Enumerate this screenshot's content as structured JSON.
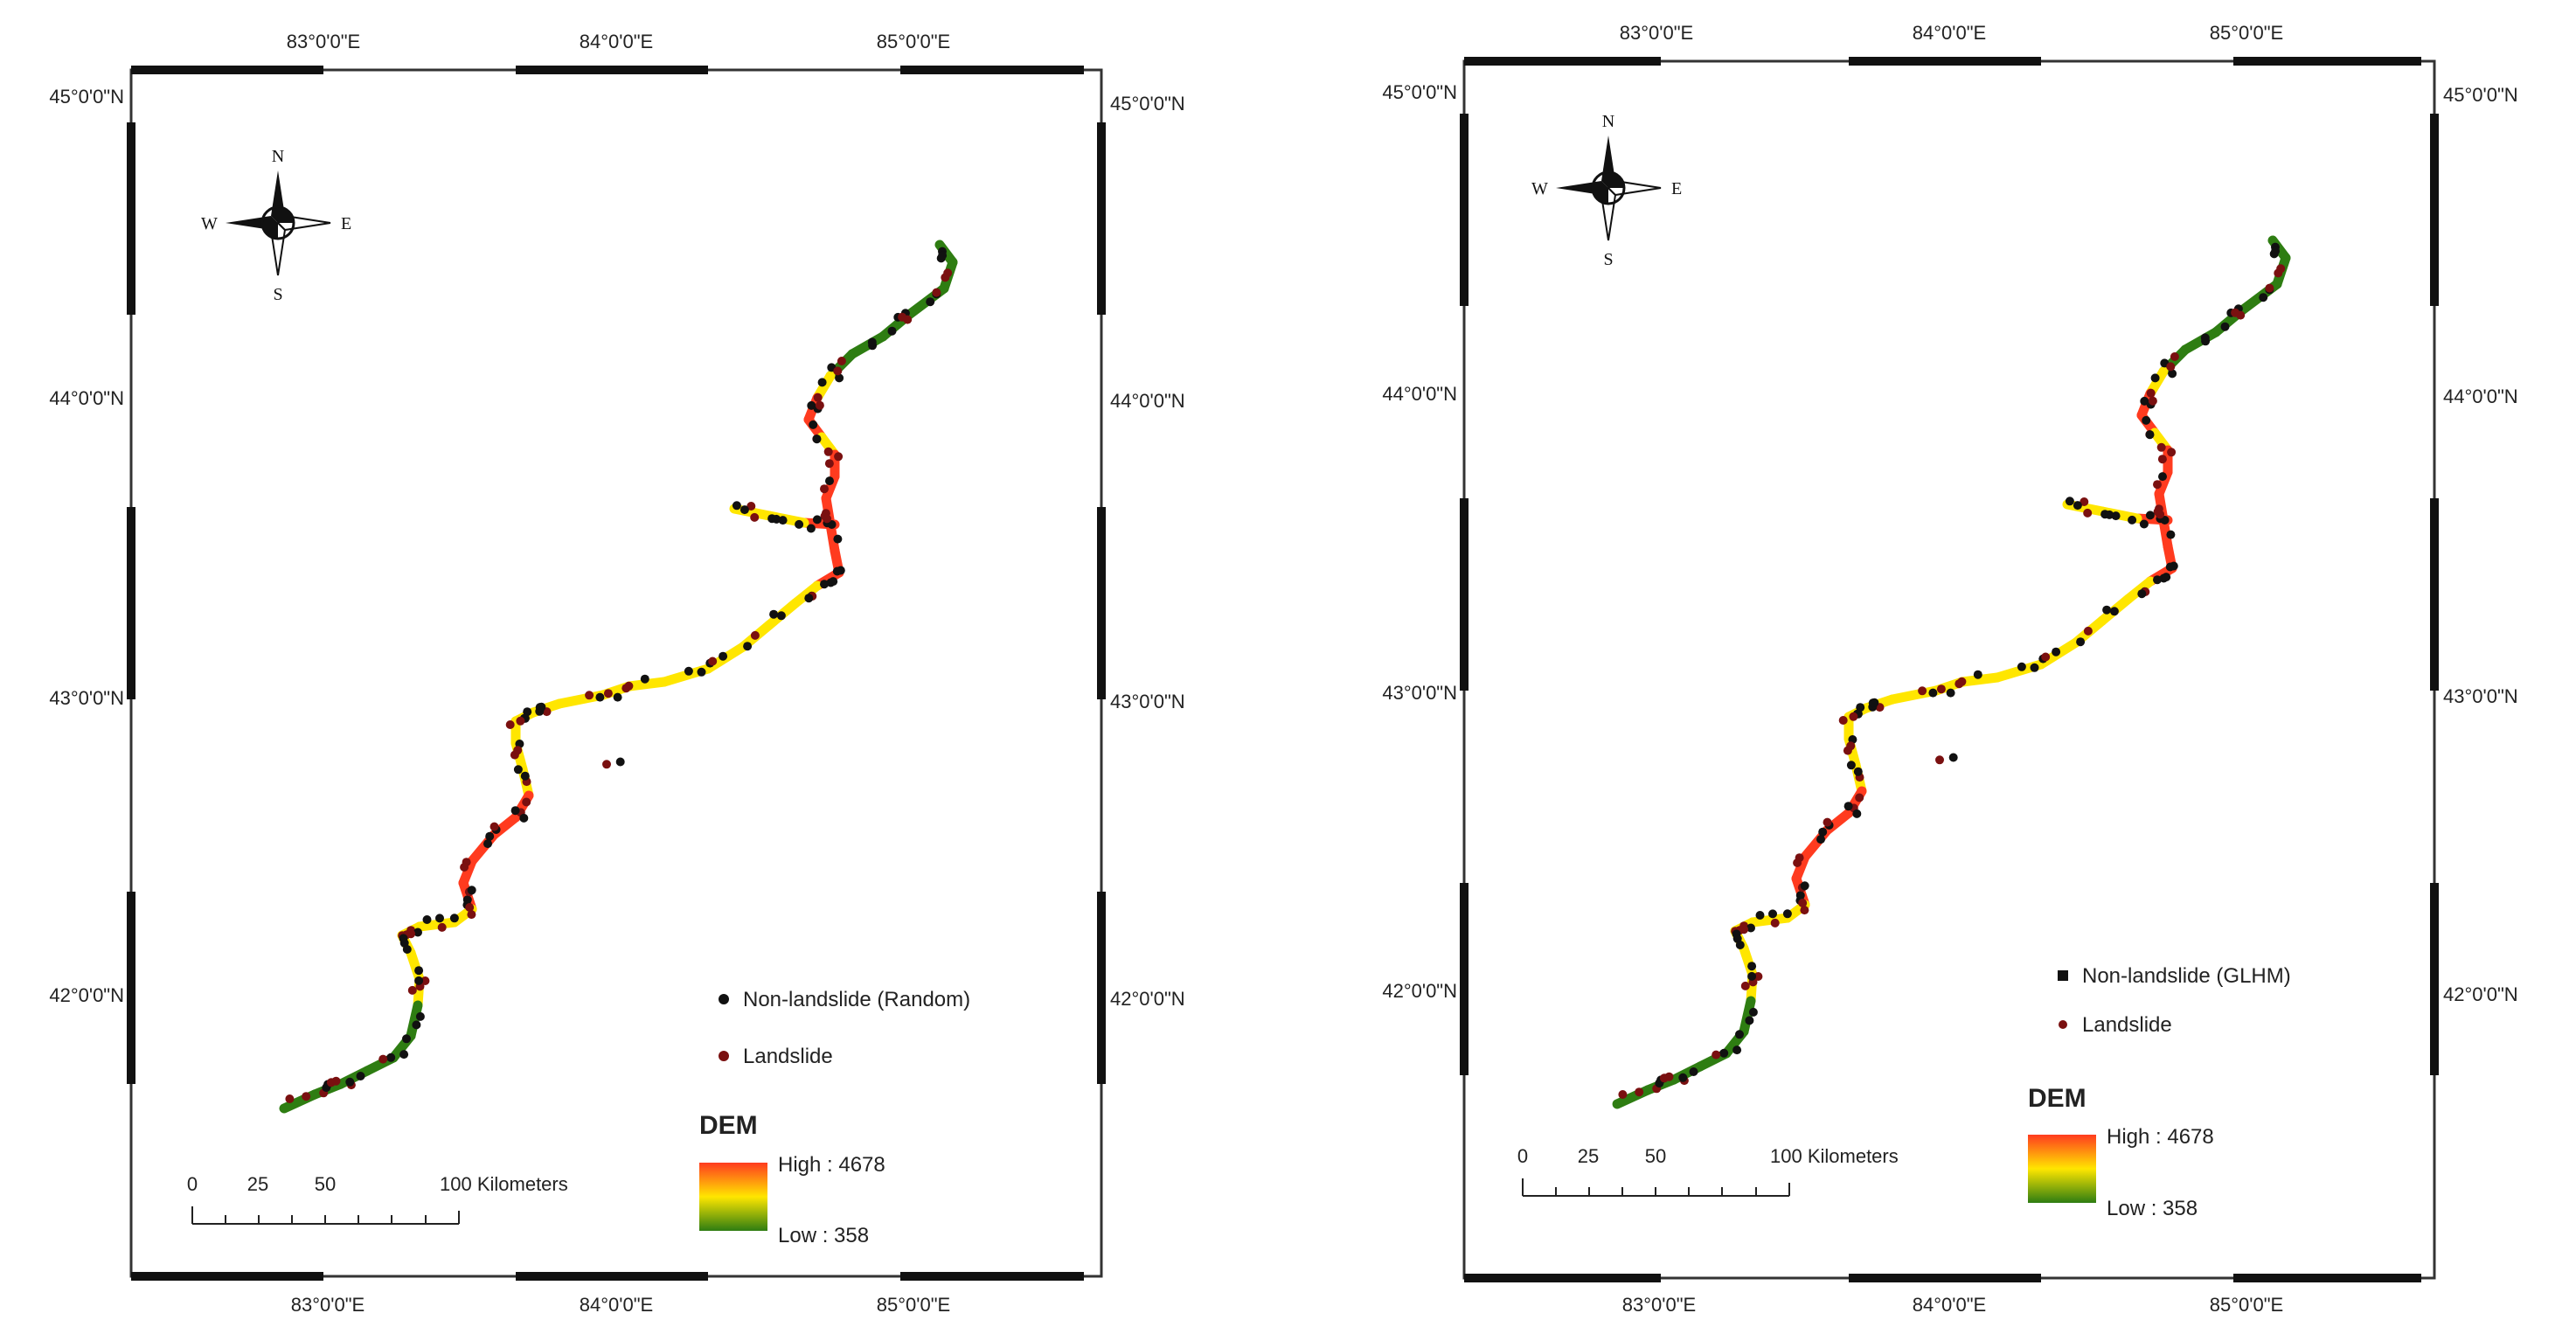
{
  "maps": [
    {
      "x_ticks": [
        "83°0'0\"E",
        "84°0'0\"E",
        "85°0'0\"E"
      ],
      "y_ticks": [
        "45°0'0\"N",
        "44°0'0\"N",
        "43°0'0\"N",
        "42°0'0\"N"
      ],
      "compass": {
        "n": "N",
        "s": "S",
        "e": "E",
        "w": "W"
      },
      "legend": {
        "nonlandslide": "Non-landslide (Random)",
        "landslide": "Landslide"
      },
      "dem": {
        "title": "DEM",
        "high": "High : 4678",
        "low": "Low : 358"
      },
      "scale": {
        "labels": [
          "0",
          "25",
          "50",
          "100 Kilometers"
        ]
      }
    },
    {
      "x_ticks": [
        "83°0'0\"E",
        "84°0'0\"E",
        "85°0'0\"E"
      ],
      "y_ticks": [
        "45°0'0\"N",
        "44°0'0\"N",
        "43°0'0\"N",
        "42°0'0\"N"
      ],
      "compass": {
        "n": "N",
        "s": "S",
        "e": "E",
        "w": "W"
      },
      "legend": {
        "nonlandslide": "Non-landslide (GLHM)",
        "landslide": "Landslide"
      },
      "dem": {
        "title": "DEM",
        "high": "High : 4678",
        "low": "Low : 358"
      },
      "scale": {
        "labels": [
          "0",
          "25",
          "50",
          "100 Kilometers"
        ]
      }
    }
  ],
  "colors": {
    "dem_high": "#ff3b1f",
    "dem_mid": "#ffe600",
    "dem_low": "#2e7d12",
    "nonlandslide": "#111111",
    "landslide": "#7a1010"
  }
}
